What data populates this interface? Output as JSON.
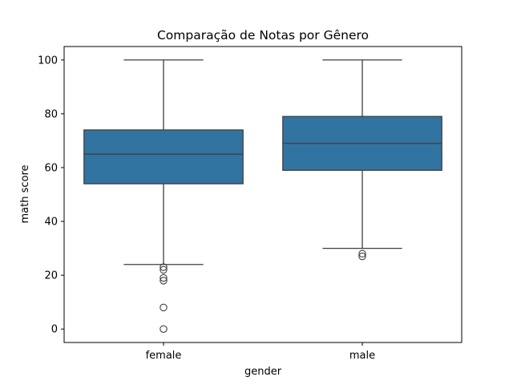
{
  "chart_data": {
    "type": "box",
    "title": "Comparação de Notas por Gênero",
    "xlabel": "gender",
    "ylabel": "math score",
    "categories": [
      "female",
      "male"
    ],
    "ylim": [
      -5,
      105
    ],
    "yticks": [
      0,
      20,
      40,
      60,
      80,
      100
    ],
    "grid": false,
    "box_color": "#3274a1",
    "line_color": "#3f3f3f",
    "boxes": [
      {
        "category": "female",
        "whisker_low": 24,
        "q1": 54,
        "median": 65,
        "q3": 74,
        "whisker_high": 100,
        "outliers": [
          23,
          22,
          19,
          18,
          8,
          0
        ]
      },
      {
        "category": "male",
        "whisker_low": 30,
        "q1": 59,
        "median": 69,
        "q3": 79,
        "whisker_high": 100,
        "outliers": [
          28,
          27
        ]
      }
    ]
  }
}
